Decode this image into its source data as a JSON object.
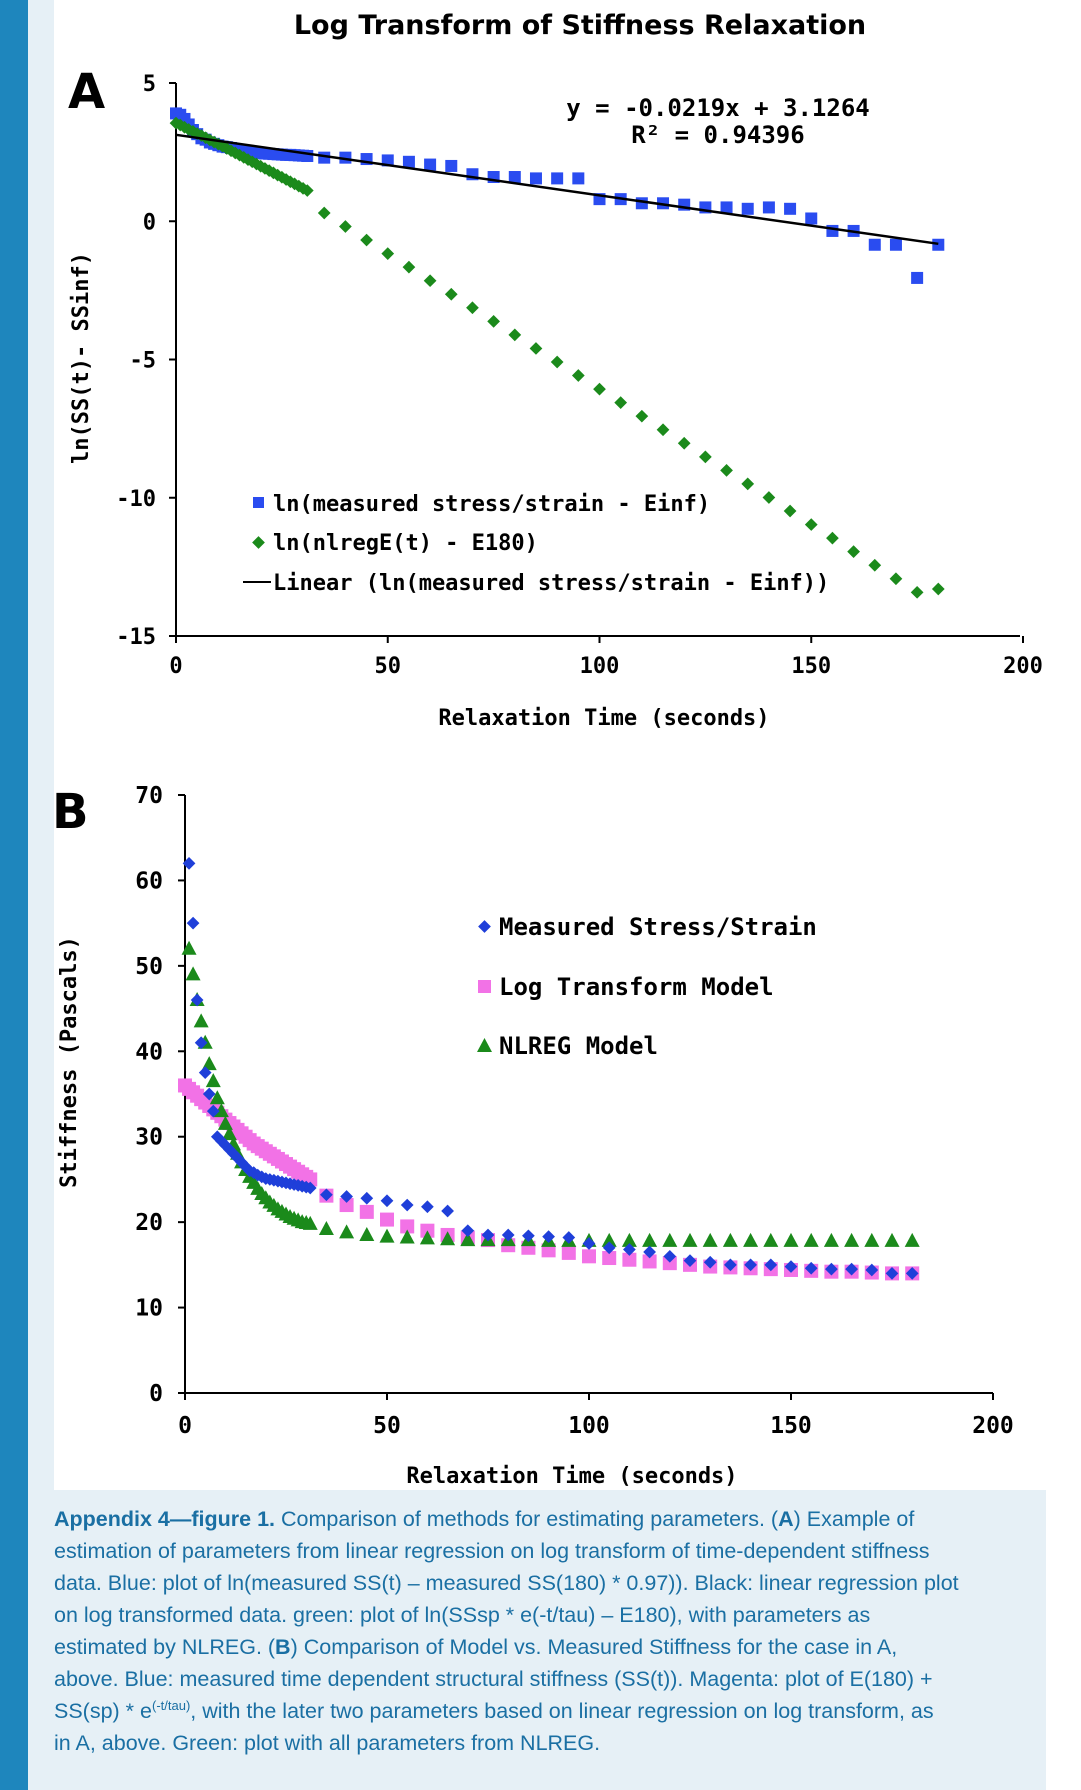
{
  "colors": {
    "blue": "#1f3fd9",
    "blue_a": "#2a4cf0",
    "green": "#1b8a1b",
    "magenta": "#f272e6",
    "black": "#000000",
    "caption": "#1a6fa3",
    "sidebar": "#1e86bd",
    "panel_bg": "#e6f0f6"
  },
  "title": "Log Transform of Stiffness Relaxation",
  "panel_a": {
    "letter": "A",
    "equation": "y = -0.0219x + 3.1264",
    "r2": "R² = 0.94396",
    "ylabel": "ln(SS(t)- SSinf)",
    "xlabel": "Relaxation Time  (seconds)",
    "yticks": [
      "5",
      "0",
      "-5",
      "-10",
      "-15"
    ],
    "xticks": [
      "0",
      "50",
      "100",
      "150",
      "200"
    ],
    "legend": [
      "ln(measured stress/strain - Einf)",
      "ln(nlregE(t) - E180)",
      "Linear (ln(measured stress/strain - Einf))"
    ]
  },
  "panel_b": {
    "letter": "B",
    "ylabel": "Stiffness (Pascals)",
    "xlabel": "Relaxation Time (seconds)",
    "yticks": [
      "70",
      "60",
      "50",
      "40",
      "30",
      "20",
      "10",
      "0"
    ],
    "xticks": [
      "0",
      "50",
      "100",
      "150",
      "200"
    ],
    "legend": [
      "Measured Stress/Strain",
      "Log Transform Model",
      "NLREG Model"
    ]
  },
  "caption": {
    "title": "Appendix 4—figure 1.",
    "l1_rest": " Comparison of methods for estimating parameters. (",
    "a": "A",
    "l1_tail": ") Example of",
    "l2": "estimation of parameters from linear regression on log transform of time-dependent stiffness",
    "l3": "data. Blue: plot of ln(measured SS(t) – measured SS(180) * 0.97)). Black: linear regression plot",
    "l4": "on log transformed data. green: plot of ln(SSsp * e(-t/tau) – E180), with parameters as",
    "l5_head": "estimated by NLREG. (",
    "b": "B",
    "l5_tail": ") Comparison of Model vs. Measured Stiffness for the case in A,",
    "l6": "above. Blue: measured time dependent structural stiffness (SS(t)). Magenta: plot of E(180) +",
    "l7_head": "SS(sp) * e",
    "l7_sup": "(-t/tau)",
    "l7_tail": ", with the later two parameters based on linear regression on log transform, as",
    "l8": "in A, above. Green: plot with all parameters from NLREG."
  },
  "chart_data": [
    {
      "type": "scatter",
      "title": "Log Transform of Stiffness Relaxation",
      "xlabel": "Relaxation Time  (seconds)",
      "ylabel": "ln(SS(t)- SSinf)",
      "xlim": [
        0,
        200
      ],
      "ylim": [
        -15,
        5
      ],
      "annotations": [
        "y = -0.0219x + 3.1264",
        "R² = 0.94396"
      ],
      "legend_position": "bottom-left",
      "series": [
        {
          "name": "ln(measured stress/strain - Einf)",
          "marker": "square",
          "color": "#2a4cf0",
          "x": [
            0,
            1,
            2,
            3,
            4,
            5,
            6,
            7,
            8,
            9,
            10,
            11,
            12,
            13,
            14,
            15,
            16,
            17,
            18,
            19,
            20,
            21,
            22,
            23,
            24,
            25,
            26,
            27,
            28,
            29,
            30,
            31,
            35,
            40,
            45,
            50,
            55,
            60,
            65,
            70,
            75,
            80,
            85,
            90,
            95,
            100,
            105,
            110,
            115,
            120,
            125,
            130,
            135,
            140,
            145,
            150,
            155,
            160,
            165,
            170,
            175,
            180
          ],
          "y": [
            3.9,
            3.85,
            3.7,
            3.5,
            3.3,
            3.15,
            3.0,
            2.95,
            2.85,
            2.8,
            2.75,
            2.7,
            2.68,
            2.65,
            2.6,
            2.58,
            2.55,
            2.52,
            2.5,
            2.48,
            2.47,
            2.45,
            2.44,
            2.43,
            2.42,
            2.41,
            2.4,
            2.4,
            2.39,
            2.38,
            2.37,
            2.36,
            2.3,
            2.3,
            2.25,
            2.2,
            2.15,
            2.05,
            2.0,
            1.7,
            1.6,
            1.6,
            1.55,
            1.55,
            1.55,
            0.8,
            0.8,
            0.65,
            0.65,
            0.6,
            0.5,
            0.5,
            0.45,
            0.5,
            0.45,
            0.1,
            -0.35,
            -0.35,
            -0.85,
            -0.85,
            -2.05,
            -0.85
          ]
        },
        {
          "name": "ln(nlregE(t) - E180)",
          "marker": "diamond",
          "color": "#1b8a1b",
          "x": [
            0,
            1,
            2,
            3,
            4,
            5,
            6,
            7,
            8,
            9,
            10,
            11,
            12,
            13,
            14,
            15,
            16,
            17,
            18,
            19,
            20,
            21,
            22,
            23,
            24,
            25,
            26,
            27,
            28,
            29,
            30,
            31,
            35,
            40,
            45,
            50,
            55,
            60,
            65,
            70,
            75,
            80,
            85,
            90,
            95,
            100,
            105,
            110,
            115,
            120,
            125,
            130,
            135,
            140,
            145,
            150,
            155,
            160,
            165,
            170,
            175,
            180
          ],
          "y": [
            3.55,
            3.48,
            3.4,
            3.32,
            3.25,
            3.17,
            3.1,
            3.02,
            2.94,
            2.86,
            2.79,
            2.71,
            2.63,
            2.55,
            2.47,
            2.39,
            2.31,
            2.23,
            2.15,
            2.07,
            1.99,
            1.91,
            1.83,
            1.75,
            1.67,
            1.59,
            1.51,
            1.43,
            1.35,
            1.27,
            1.19,
            1.11,
            0.3,
            -0.19,
            -0.68,
            -1.17,
            -1.66,
            -2.15,
            -2.64,
            -3.13,
            -3.62,
            -4.11,
            -4.6,
            -5.09,
            -5.58,
            -6.07,
            -6.56,
            -7.05,
            -7.54,
            -8.03,
            -8.52,
            -9.01,
            -9.5,
            -9.99,
            -10.48,
            -10.97,
            -11.46,
            -11.95,
            -12.44,
            -12.93,
            -13.42,
            -13.3
          ]
        },
        {
          "name": "Linear (ln(measured stress/strain - Einf))",
          "type": "line",
          "color": "#000000",
          "slope": -0.0219,
          "intercept": 3.1264,
          "x": [
            0,
            180
          ]
        }
      ]
    },
    {
      "type": "scatter",
      "title": "",
      "xlabel": "Relaxation Time (seconds)",
      "ylabel": "Stiffness (Pascals)",
      "xlim": [
        0,
        200
      ],
      "ylim": [
        0,
        70
      ],
      "legend_position": "top-right",
      "series": [
        {
          "name": "Measured Stress/Strain",
          "marker": "diamond",
          "color": "#1f3fd9",
          "x": [
            1,
            2,
            3,
            4,
            5,
            6,
            7,
            8,
            9,
            10,
            11,
            12,
            13,
            14,
            15,
            16,
            17,
            18,
            19,
            20,
            21,
            22,
            23,
            24,
            25,
            26,
            27,
            28,
            29,
            30,
            31,
            35,
            40,
            45,
            50,
            55,
            60,
            65,
            70,
            75,
            80,
            85,
            90,
            95,
            100,
            105,
            110,
            115,
            120,
            125,
            130,
            135,
            140,
            145,
            150,
            155,
            160,
            165,
            170,
            175,
            180
          ],
          "y": [
            62,
            55,
            46,
            41,
            37.5,
            35,
            33,
            30,
            29.5,
            29,
            28.5,
            28,
            27.5,
            27,
            26.5,
            26,
            25.8,
            25.5,
            25.3,
            25.1,
            25,
            24.9,
            24.8,
            24.7,
            24.6,
            24.5,
            24.4,
            24.3,
            24.2,
            24.1,
            24,
            23.2,
            23,
            22.8,
            22.5,
            22,
            21.8,
            21.3,
            19,
            18.5,
            18.5,
            18.4,
            18.3,
            18.2,
            17.5,
            17,
            16.8,
            16.5,
            16,
            15.5,
            15.3,
            15,
            15,
            15,
            14.8,
            14.6,
            14.5,
            14.5,
            14.4,
            14.0,
            14.0
          ]
        },
        {
          "name": "Log Transform Model",
          "marker": "square",
          "color": "#f272e6",
          "x": [
            0,
            1,
            2,
            3,
            4,
            5,
            6,
            7,
            8,
            9,
            10,
            11,
            12,
            13,
            14,
            15,
            16,
            17,
            18,
            19,
            20,
            21,
            22,
            23,
            24,
            25,
            26,
            27,
            28,
            29,
            30,
            31,
            35,
            40,
            45,
            50,
            55,
            60,
            65,
            70,
            75,
            80,
            85,
            90,
            95,
            100,
            105,
            110,
            115,
            120,
            125,
            130,
            135,
            140,
            145,
            150,
            155,
            160,
            165,
            170,
            175,
            180
          ],
          "y": [
            36,
            35.6,
            35.2,
            34.8,
            34.4,
            34,
            33.6,
            33.2,
            32.8,
            32.4,
            32,
            31.6,
            31.2,
            30.8,
            30.4,
            30,
            29.6,
            29.2,
            28.9,
            28.6,
            28.3,
            28,
            27.7,
            27.4,
            27.1,
            26.8,
            26.5,
            26.2,
            25.9,
            25.6,
            25.3,
            25,
            23.1,
            22,
            21.2,
            20.3,
            19.5,
            19,
            18.5,
            18.2,
            17.9,
            17.3,
            17,
            16.7,
            16.4,
            16,
            15.8,
            15.6,
            15.4,
            15.2,
            15,
            14.8,
            14.7,
            14.6,
            14.5,
            14.4,
            14.3,
            14.2,
            14.2,
            14.1,
            14.0,
            14.0
          ]
        },
        {
          "name": "NLREG Model",
          "marker": "triangle",
          "color": "#1b8a1b",
          "x": [
            1,
            2,
            3,
            4,
            5,
            6,
            7,
            8,
            9,
            10,
            11,
            12,
            13,
            14,
            15,
            16,
            17,
            18,
            19,
            20,
            21,
            22,
            23,
            24,
            25,
            26,
            27,
            28,
            29,
            30,
            31,
            35,
            40,
            45,
            50,
            55,
            60,
            65,
            70,
            75,
            80,
            85,
            90,
            95,
            100,
            105,
            110,
            115,
            120,
            125,
            130,
            135,
            140,
            145,
            150,
            155,
            160,
            165,
            170,
            175,
            180
          ],
          "y": [
            52,
            49,
            46,
            43.5,
            41,
            38.5,
            36.5,
            34.5,
            33,
            31.5,
            30.3,
            29.1,
            28,
            27,
            26.1,
            25.3,
            24.6,
            23.9,
            23.3,
            22.8,
            22.3,
            21.9,
            21.5,
            21.2,
            20.9,
            20.6,
            20.4,
            20.2,
            20,
            19.9,
            19.8,
            19.2,
            18.8,
            18.5,
            18.3,
            18.2,
            18.1,
            18.0,
            17.9,
            17.9,
            17.9,
            17.9,
            17.8,
            17.8,
            17.8,
            17.8,
            17.8,
            17.8,
            17.8,
            17.8,
            17.8,
            17.8,
            17.8,
            17.8,
            17.8,
            17.8,
            17.8,
            17.8,
            17.8,
            17.8,
            17.8
          ]
        }
      ]
    }
  ]
}
